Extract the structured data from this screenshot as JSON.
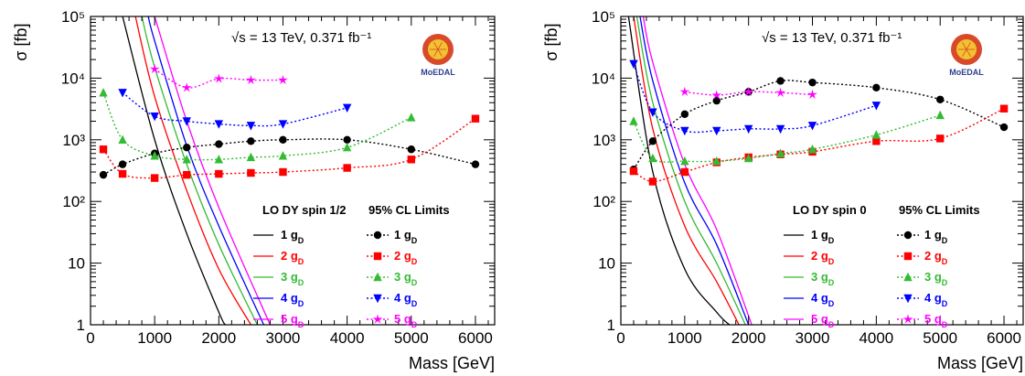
{
  "chart_data": [
    {
      "type": "line",
      "panel": "left",
      "ylabel": "σ [fb]",
      "xlabel": "Mass [GeV]",
      "xlim": [
        0,
        6300
      ],
      "ylim": [
        1,
        100000
      ],
      "y_scale": "log",
      "x_ticks": [
        0,
        1000,
        2000,
        3000,
        4000,
        5000,
        6000
      ],
      "x_tick_labels": [
        "0",
        "1000",
        "2000",
        "3000",
        "4000",
        "5000",
        "6000"
      ],
      "y_ticks": [
        1,
        10,
        100,
        1000,
        10000,
        100000
      ],
      "y_tick_labels": [
        "1",
        "10",
        "10²",
        "10³",
        "10⁴",
        "10⁵"
      ],
      "annotation": "√s = 13 TeV, 0.371 fb⁻¹",
      "logo_text": "MoEDAL",
      "legend_placement": "bottom-right",
      "legend_theory_header": "LO DY spin 1/2",
      "legend_limits_header": "95% CL Limits",
      "theory_series": [
        {
          "name": "1 g",
          "sub": "D",
          "color": "#000000",
          "x": [
            500,
            1000,
            1500,
            2000,
            2100
          ],
          "y": [
            100000,
            1000,
            30,
            1.6,
            1
          ]
        },
        {
          "name": "2 g",
          "sub": "D",
          "color": "#ff0000",
          "x": [
            700,
            1000,
            1500,
            2000,
            2500
          ],
          "y": [
            100000,
            5000,
            150,
            8,
            1
          ]
        },
        {
          "name": "3 g",
          "sub": "D",
          "color": "#33bb33",
          "x": [
            800,
            1000,
            1500,
            2000,
            2600
          ],
          "y": [
            100000,
            15000,
            400,
            20,
            1
          ]
        },
        {
          "name": "4 g",
          "sub": "D",
          "color": "#0000ff",
          "x": [
            900,
            1000,
            1500,
            2000,
            2700
          ],
          "y": [
            100000,
            40000,
            800,
            40,
            1
          ]
        },
        {
          "name": "5 g",
          "sub": "D",
          "color": "#ff00ff",
          "x": [
            1000,
            1500,
            2000,
            2800
          ],
          "y": [
            100000,
            2000,
            80,
            1
          ]
        }
      ],
      "limit_series": [
        {
          "name": "1 g",
          "sub": "D",
          "color": "#000000",
          "marker": "circle",
          "x": [
            200,
            500,
            1000,
            1500,
            2000,
            2500,
            3000,
            4000,
            5000,
            6000
          ],
          "y": [
            270,
            400,
            600,
            750,
            850,
            950,
            1000,
            1000,
            700,
            400
          ]
        },
        {
          "name": "2 g",
          "sub": "D",
          "color": "#ff0000",
          "marker": "square",
          "x": [
            200,
            500,
            1000,
            1500,
            2000,
            2500,
            3000,
            4000,
            5000,
            6000
          ],
          "y": [
            700,
            280,
            240,
            270,
            280,
            290,
            300,
            350,
            480,
            2200
          ]
        },
        {
          "name": "3 g",
          "sub": "D",
          "color": "#33bb33",
          "marker": "triangle-up",
          "x": [
            200,
            500,
            1000,
            1500,
            2000,
            2500,
            3000,
            4000,
            5000
          ],
          "y": [
            5800,
            1000,
            550,
            480,
            480,
            520,
            550,
            750,
            2300
          ]
        },
        {
          "name": "4 g",
          "sub": "D",
          "color": "#0000ff",
          "marker": "triangle-down",
          "x": [
            500,
            1000,
            1500,
            2000,
            2500,
            3000,
            4000
          ],
          "y": [
            5800,
            2400,
            2000,
            1800,
            1700,
            1800,
            3300
          ]
        },
        {
          "name": "5 g",
          "sub": "D",
          "color": "#ff00ff",
          "marker": "star",
          "x": [
            1000,
            1500,
            2000,
            2500,
            3000
          ],
          "y": [
            14000,
            7000,
            9800,
            9300,
            9300
          ]
        }
      ]
    },
    {
      "type": "line",
      "panel": "right",
      "ylabel": "σ [fb]",
      "xlabel": "Mass [GeV]",
      "xlim": [
        0,
        6300
      ],
      "ylim": [
        1,
        100000
      ],
      "y_scale": "log",
      "x_ticks": [
        0,
        1000,
        2000,
        3000,
        4000,
        5000,
        6000
      ],
      "x_tick_labels": [
        "0",
        "1000",
        "2000",
        "3000",
        "4000",
        "5000",
        "6000"
      ],
      "y_ticks": [
        1,
        10,
        100,
        1000,
        10000,
        100000
      ],
      "y_tick_labels": [
        "1",
        "10",
        "10²",
        "10³",
        "10⁴",
        "10⁵"
      ],
      "annotation": "√s = 13 TeV, 0.371 fb⁻¹",
      "logo_text": "MoEDAL",
      "legend_placement": "bottom-right",
      "legend_theory_header": "LO DY spin 0",
      "legend_limits_header": "95% CL Limits",
      "theory_series": [
        {
          "name": "1 g",
          "sub": "D",
          "color": "#000000",
          "x": [
            120,
            500,
            1000,
            1500,
            1700
          ],
          "y": [
            100000,
            300,
            8,
            1.6,
            1
          ]
        },
        {
          "name": "2 g",
          "sub": "D",
          "color": "#ff0000",
          "x": [
            200,
            500,
            1000,
            1500,
            1850
          ],
          "y": [
            100000,
            1500,
            40,
            5,
            1
          ]
        },
        {
          "name": "3 g",
          "sub": "D",
          "color": "#33bb33",
          "x": [
            250,
            500,
            1000,
            1500,
            1950
          ],
          "y": [
            100000,
            4000,
            100,
            10,
            1
          ]
        },
        {
          "name": "4 g",
          "sub": "D",
          "color": "#0000ff",
          "x": [
            300,
            500,
            1000,
            1500,
            2000
          ],
          "y": [
            100000,
            9000,
            200,
            20,
            1
          ]
        },
        {
          "name": "5 g",
          "sub": "D",
          "color": "#ff00ff",
          "x": [
            350,
            500,
            1000,
            1500,
            2050
          ],
          "y": [
            100000,
            18000,
            400,
            35,
            1
          ]
        }
      ],
      "limit_series": [
        {
          "name": "1 g",
          "sub": "D",
          "color": "#000000",
          "marker": "circle",
          "x": [
            200,
            500,
            1000,
            1500,
            2000,
            2500,
            3000,
            4000,
            5000,
            6000
          ],
          "y": [
            330,
            950,
            2600,
            4300,
            6000,
            9000,
            8500,
            7000,
            4500,
            1600
          ]
        },
        {
          "name": "2 g",
          "sub": "D",
          "color": "#ff0000",
          "marker": "square",
          "x": [
            200,
            500,
            1000,
            1500,
            2000,
            2500,
            3000,
            4000,
            5000,
            6000
          ],
          "y": [
            310,
            210,
            300,
            430,
            520,
            580,
            640,
            950,
            1050,
            3200
          ]
        },
        {
          "name": "3 g",
          "sub": "D",
          "color": "#33bb33",
          "marker": "triangle-up",
          "x": [
            200,
            500,
            1000,
            1500,
            2000,
            2500,
            3000,
            4000,
            5000
          ],
          "y": [
            2000,
            500,
            450,
            450,
            500,
            600,
            700,
            1200,
            2500
          ]
        },
        {
          "name": "4 g",
          "sub": "D",
          "color": "#0000ff",
          "marker": "triangle-down",
          "x": [
            200,
            500,
            1000,
            1500,
            2000,
            2500,
            3000,
            4000
          ],
          "y": [
            17000,
            2800,
            1400,
            1400,
            1500,
            1500,
            1700,
            3600
          ]
        },
        {
          "name": "5 g",
          "sub": "D",
          "color": "#ff00ff",
          "marker": "star",
          "x": [
            1000,
            1500,
            2000,
            2500,
            3000
          ],
          "y": [
            6000,
            5300,
            6000,
            5800,
            5400
          ]
        }
      ]
    }
  ]
}
